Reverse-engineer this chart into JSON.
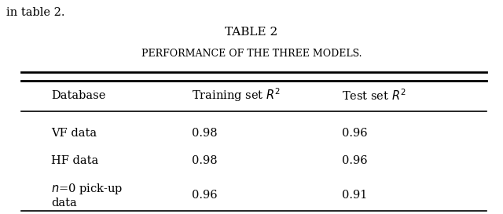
{
  "title": "TABLE 2",
  "subtitle": "PERFORMANCE OF THE THREE MODELS.",
  "col_headers": [
    "Database",
    "Training set $R^2$",
    "Test set $R^2$"
  ],
  "rows": [
    [
      "VF data",
      "0.98",
      "0.96"
    ],
    [
      "HF data",
      "0.98",
      "0.96"
    ],
    [
      "$n$=0 pick-up\ndata",
      "0.96",
      "0.91"
    ]
  ],
  "bg_color": "#ffffff",
  "text_color": "#000000",
  "font_size": 10.5,
  "header_font_size": 10.5,
  "title_font_size": 11,
  "subtitle_font_size": 9.0,
  "intro_text": "in table 2."
}
